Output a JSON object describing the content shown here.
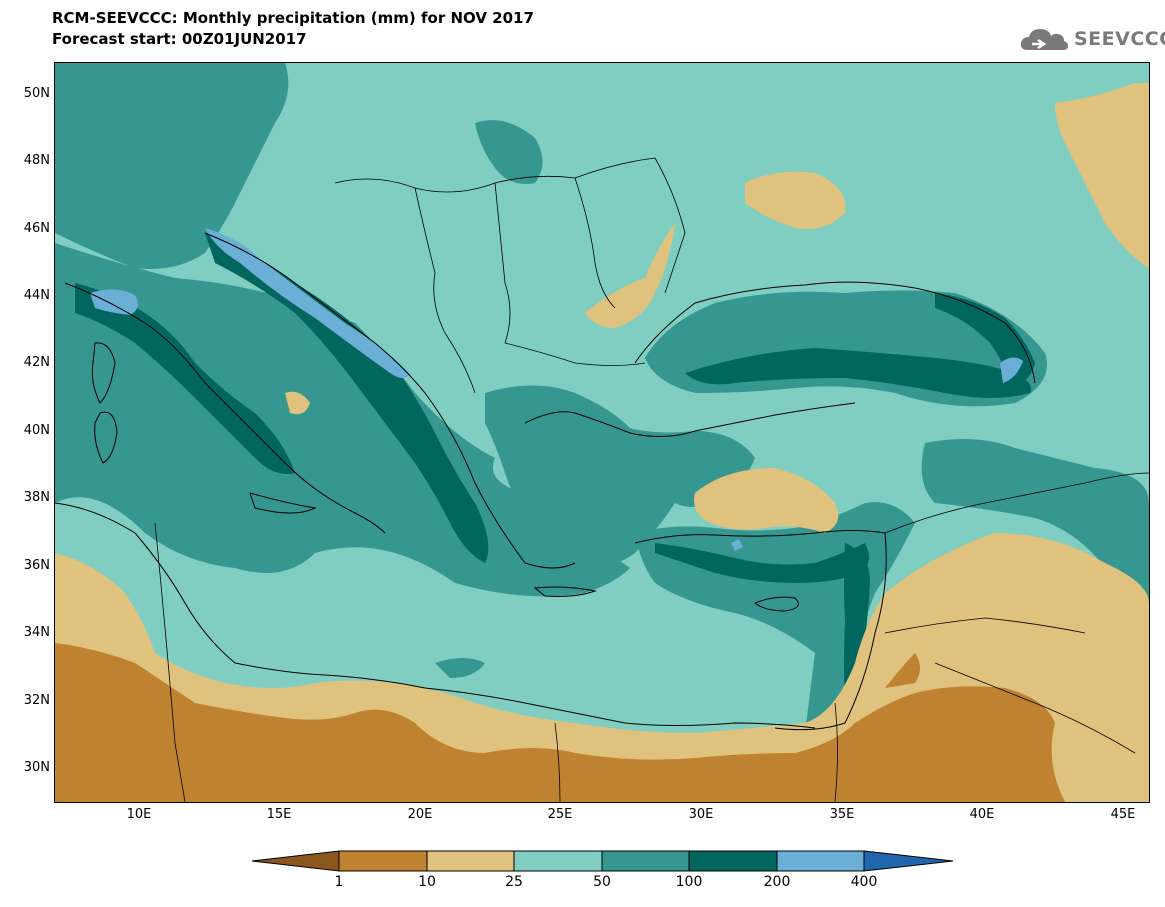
{
  "header": {
    "title": "RCM-SEEVCCC: Monthly precipitation (mm) for NOV 2017",
    "subtitle": "Forecast start: 00Z01JUN2017"
  },
  "logo": {
    "text": "SEEVCCC",
    "icon": "cloud-logo-icon"
  },
  "axes": {
    "lat_labels": [
      "50N",
      "48N",
      "46N",
      "44N",
      "42N",
      "40N",
      "38N",
      "36N",
      "34N",
      "32N",
      "30N"
    ],
    "lon_labels": [
      "10E",
      "15E",
      "20E",
      "25E",
      "30E",
      "35E",
      "40E",
      "45E"
    ]
  },
  "legend": {
    "labels": [
      "1",
      "10",
      "25",
      "50",
      "100",
      "200",
      "400"
    ],
    "colors": [
      "#8b561c",
      "#bf8231",
      "#dfc27d",
      "#80cdc1",
      "#35978f",
      "#01665e",
      "#6baed6",
      "#2166ac"
    ]
  },
  "colors": {
    "class_1_10": "#bf8231",
    "class_10_25": "#dfc27d",
    "class_25_50": "#80cdc1",
    "class_50_100": "#35978f",
    "class_100_200": "#01665e",
    "class_200_400": "#6baed6"
  }
}
